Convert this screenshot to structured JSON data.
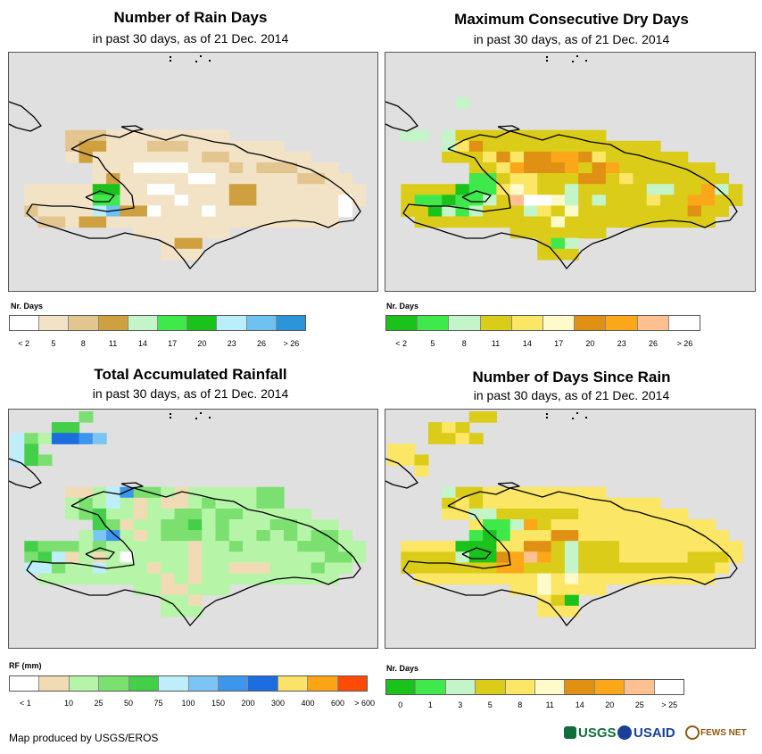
{
  "panels": [
    {
      "id": "rain-days",
      "title": "Number of Rain Days",
      "subtitle": "in past 30 days, as of 21 Dec. 2014",
      "legend_title": "Nr. Days",
      "legend_colors": [
        "#ffffff",
        "#f3e3c6",
        "#e3c58f",
        "#cfa03f",
        "#c4f5c8",
        "#3fe84b",
        "#1cc21c",
        "#b9eefa",
        "#6ec2f0",
        "#2a95d8"
      ],
      "legend_labels": [
        "< 2",
        "5",
        "8",
        "11",
        "14",
        "17",
        "20",
        "23",
        "26",
        "> 26"
      ],
      "label_mode": "center"
    },
    {
      "id": "dry-days",
      "title": "Maximum Consecutive Dry Days",
      "subtitle": "in past 30 days, as of 21 Dec. 2014",
      "legend_title": "Nr. Days",
      "legend_colors": [
        "#1cc21c",
        "#3fe84b",
        "#c4f5c8",
        "#dccc1a",
        "#fbe665",
        "#fefac9",
        "#e09012",
        "#fca71a",
        "#fdc191",
        "#ffffff"
      ],
      "legend_labels": [
        "< 2",
        "5",
        "8",
        "11",
        "14",
        "17",
        "20",
        "23",
        "26",
        "> 26"
      ],
      "label_mode": "center"
    },
    {
      "id": "rainfall",
      "title": "Total Accumulated Rainfall",
      "subtitle": "in past 30 days, as of 21 Dec. 2014",
      "legend_title": "RF (mm)",
      "legend_colors": [
        "#ffffff",
        "#f1dbb4",
        "#b6f5a8",
        "#7be070",
        "#43cf49",
        "#bfeefb",
        "#7ac5f3",
        "#3c96ec",
        "#1c6ee0",
        "#fbe36a",
        "#fca514",
        "#fd4a05"
      ],
      "legend_labels": [
        "< 1",
        "10",
        "25",
        "50",
        "75",
        "100",
        "150",
        "200",
        "300",
        "400",
        "600",
        "> 600"
      ],
      "label_mode": "boundary"
    },
    {
      "id": "days-since-rain",
      "title": "Number of Days Since Rain",
      "subtitle": "in past 30 days, as of 21 Dec. 2014",
      "legend_title": "Nr. Days",
      "legend_colors": [
        "#1cc21c",
        "#3fe84b",
        "#c4f5c8",
        "#dccc1a",
        "#fbe665",
        "#fefac9",
        "#e09012",
        "#fca71a",
        "#fdc191",
        "#ffffff"
      ],
      "legend_labels": [
        "0",
        "1",
        "3",
        "5",
        "8",
        "11",
        "14",
        "20",
        "25",
        "> 25"
      ],
      "label_mode": "center"
    }
  ],
  "credit": "Map produced by USGS/EROS",
  "logos": [
    "USGS",
    "USAID",
    "FEWS NET"
  ],
  "logo_colors": {
    "usgs": "#116d3c",
    "usaid": "#1b3f94",
    "fews": "#8a5a12"
  }
}
